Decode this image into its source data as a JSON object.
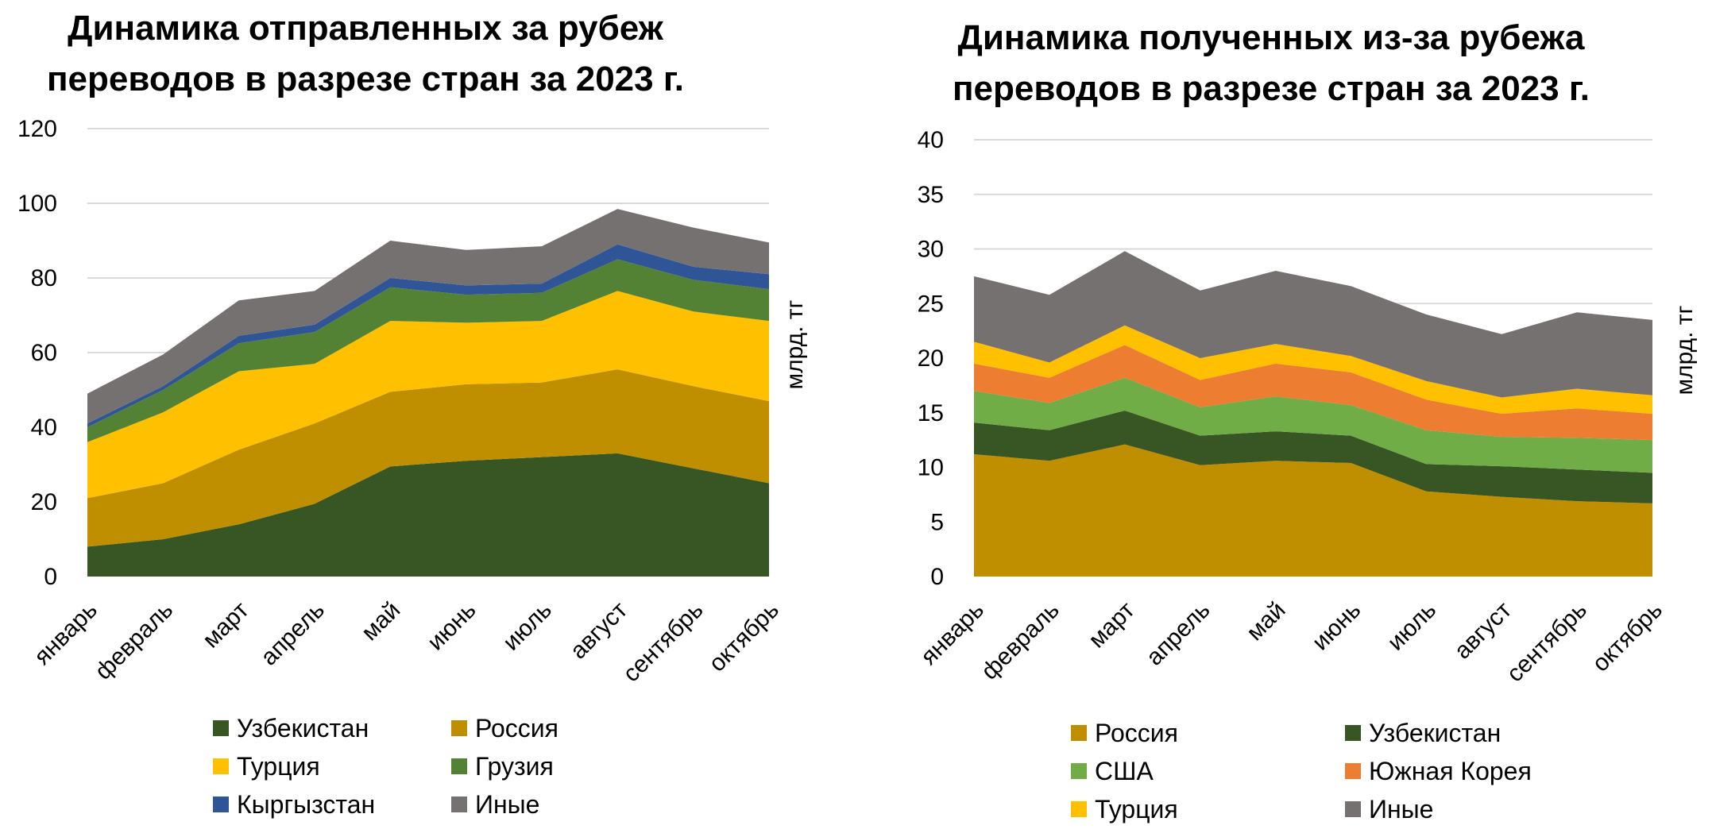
{
  "chart_data": [
    {
      "type": "area",
      "stacked": true,
      "title_lines": [
        "Динамика отправленных за рубеж",
        "переводов в разрезе стран  за 2023 г."
      ],
      "xlabel": "",
      "ylabel": "млрд. тг",
      "ylim": [
        0,
        120
      ],
      "yticks": [
        "0",
        "20",
        "40",
        "60",
        "80",
        "100",
        "120"
      ],
      "grid": true,
      "legend_position": "bottom",
      "categories": [
        "январь",
        "февраль",
        "март",
        "апрель",
        "май",
        "июнь",
        "июль",
        "август",
        "сентябрь",
        "октябрь"
      ],
      "series": [
        {
          "name": "Узбекистан",
          "color": "#375623",
          "values": [
            8,
            10,
            14,
            19.5,
            29.5,
            31,
            32,
            33,
            29,
            25
          ]
        },
        {
          "name": "Россия",
          "color": "#BF8F00",
          "values": [
            13,
            15,
            20,
            21.5,
            20,
            20.5,
            20,
            22.5,
            22,
            22
          ]
        },
        {
          "name": "Турция",
          "color": "#FFC000",
          "values": [
            15,
            19,
            21,
            16,
            19,
            16.5,
            16.5,
            21,
            20,
            21.5
          ]
        },
        {
          "name": "Грузия",
          "color": "#548235",
          "values": [
            4,
            6,
            7.5,
            8.5,
            9,
            7.5,
            7.5,
            8.5,
            8.5,
            8.5
          ]
        },
        {
          "name": "Кыргызстан",
          "color": "#2F5597",
          "values": [
            1,
            1,
            2,
            2,
            2.5,
            2.5,
            2.5,
            4,
            3.5,
            4
          ]
        },
        {
          "name": "Иные",
          "color": "#767171",
          "values": [
            8,
            8.5,
            9.5,
            9,
            10,
            9.5,
            10,
            9.5,
            10.5,
            8.5
          ]
        }
      ],
      "legend_order": [
        0,
        1,
        2,
        3,
        4,
        5
      ]
    },
    {
      "type": "area",
      "stacked": true,
      "title_lines": [
        "Динамика полученных из-за рубежа",
        "переводов в разрезе стран за 2023 г."
      ],
      "xlabel": "",
      "ylabel": "млрд. тг",
      "ylim": [
        0,
        40
      ],
      "yticks": [
        "0",
        "5",
        "10",
        "15",
        "20",
        "25",
        "30",
        "35",
        "40"
      ],
      "grid": true,
      "legend_position": "bottom",
      "categories": [
        "январь",
        "февраль",
        "март",
        "апрель",
        "май",
        "июнь",
        "июль",
        "август",
        "сентябрь",
        "октябрь"
      ],
      "series": [
        {
          "name": "Россия",
          "color": "#BF8F00",
          "values": [
            11.2,
            10.6,
            12.1,
            10.2,
            10.6,
            10.4,
            7.8,
            7.3,
            6.9,
            6.7
          ]
        },
        {
          "name": "Узбекистан",
          "color": "#375623",
          "values": [
            2.9,
            2.8,
            3.1,
            2.7,
            2.7,
            2.5,
            2.5,
            2.8,
            2.9,
            2.8
          ]
        },
        {
          "name": "США",
          "color": "#70AD47",
          "values": [
            2.9,
            2.5,
            3.0,
            2.6,
            3.2,
            2.8,
            3.1,
            2.7,
            2.9,
            3.0
          ]
        },
        {
          "name": "Южная Корея",
          "color": "#ED7D31",
          "values": [
            2.5,
            2.3,
            3.0,
            2.5,
            3.0,
            3.0,
            2.8,
            2.1,
            2.7,
            2.4
          ]
        },
        {
          "name": "Турция",
          "color": "#FFC000",
          "values": [
            2.0,
            1.4,
            1.8,
            2.0,
            1.8,
            1.5,
            1.7,
            1.5,
            1.8,
            1.7
          ]
        },
        {
          "name": "Иные",
          "color": "#767171",
          "values": [
            6.0,
            6.2,
            6.8,
            6.2,
            6.7,
            6.4,
            6.1,
            5.8,
            7.0,
            6.9
          ]
        }
      ],
      "legend_order": [
        0,
        1,
        2,
        3,
        4,
        5
      ]
    }
  ]
}
